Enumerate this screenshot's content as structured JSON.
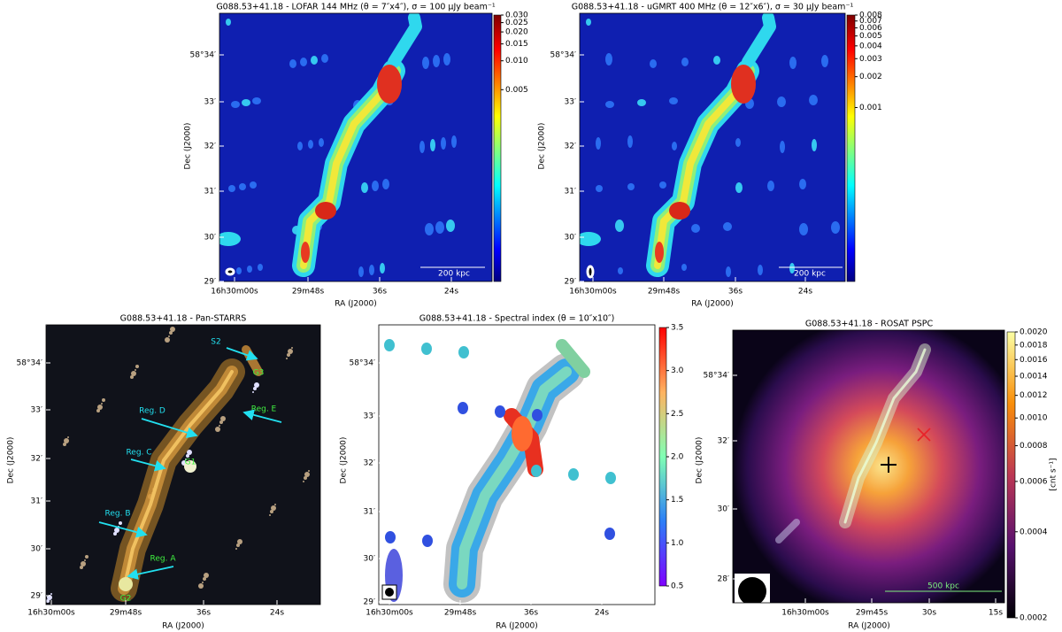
{
  "panels": [
    {
      "title": "G088.53+41.18 - LOFAR 144 MHz (θ = 7″x4″), σ = 100 μJy beam⁻¹",
      "x_label": "RA (J2000)",
      "y_label": "Dec (J2000)",
      "ra_ticks": [
        "16h30m00s",
        "29m48s",
        "36s",
        "24s"
      ],
      "dec_ticks": [
        "58°34′",
        "33′",
        "32′",
        "31′",
        "30′",
        "29′"
      ],
      "colorbar": {
        "scale": "log",
        "colormap": "jet",
        "lim": [
          5e-05,
          0.03
        ],
        "ticks": [
          {
            "value": 0.03,
            "label": "0.030"
          },
          {
            "value": 0.025,
            "label": "0.025"
          },
          {
            "value": 0.02,
            "label": "0.020"
          },
          {
            "value": 0.015,
            "label": "0.015"
          },
          {
            "value": 0.01,
            "label": "0.010"
          },
          {
            "value": 0.005,
            "label": "0.005"
          }
        ]
      },
      "annotations": [
        "200 kpc"
      ]
    },
    {
      "title": "G088.53+41.18 - uGMRT 400 MHz (θ = 12″x6″), σ =  30 μJy beam⁻¹",
      "x_label": "RA (J2000)",
      "y_label": "Dec (J2000)",
      "ra_ticks": [
        "16h30m00s",
        "29m48s",
        "36s",
        "24s"
      ],
      "dec_ticks": [
        "58°34′",
        "33′",
        "32′",
        "31′",
        "30′",
        "29′"
      ],
      "colorbar": {
        "scale": "log",
        "colormap": "jet",
        "lim": [
          2e-05,
          0.008
        ],
        "ticks": [
          0.008,
          0.007,
          0.006,
          0.005,
          0.004,
          0.003,
          0.002,
          0.001
        ]
      },
      "annotations": [
        "200 kpc"
      ]
    },
    {
      "title": "G088.53+41.18 - Pan-STARRS",
      "x_label": "RA (J2000)",
      "y_label": "Dec (J2000)",
      "ra_ticks": [
        "16h30m00s",
        "29m48s",
        "36s",
        "24s"
      ],
      "dec_ticks": [
        "58°34′",
        "33′",
        "32′",
        "31′",
        "30′",
        "29′"
      ],
      "annotations": [
        "S2",
        "G3",
        "Reg. D",
        "Reg. E",
        "Reg. C",
        "G1",
        "Reg. B",
        "Reg. A",
        "G2"
      ]
    },
    {
      "title": "G088.53+41.18 - Spectral index (θ = 10″x10″)",
      "x_label": "RA (J2000)",
      "y_label": "Dec (J2000)",
      "ra_ticks": [
        "16h30m00s",
        "29m48s",
        "36s",
        "24s"
      ],
      "dec_ticks": [
        "58°34′",
        "33′",
        "32′",
        "31′",
        "30′",
        "29′"
      ],
      "colorbar": {
        "scale": "linear",
        "colormap": "rainbow",
        "lim": [
          0.5,
          3.5
        ],
        "ticks": [
          {
            "value": 3.5,
            "label": "3.5"
          },
          {
            "value": 3,
            "label": "3.0"
          },
          {
            "value": 2.5,
            "label": "2.5"
          },
          {
            "value": 2,
            "label": "2.0"
          },
          {
            "value": 1.5,
            "label": "1.5"
          },
          {
            "value": 1,
            "label": "1.0"
          },
          {
            "value": 0.5,
            "label": "0.5"
          }
        ]
      },
      "annotations": []
    },
    {
      "title": "G088.53+41.18  - ROSAT PSPC",
      "x_label": "RA (J2000)",
      "y_label": "Dec (J2000)",
      "ra_ticks": [
        "16h30m00s",
        "29m45s",
        "30s",
        "15s"
      ],
      "dec_ticks": [
        "58°34′",
        "32′",
        "30′",
        "28′"
      ],
      "colorbar": {
        "scale": "log",
        "colormap": "inferno",
        "lim": [
          0.0002,
          0.002
        ],
        "label": "[cnt s⁻¹]",
        "ticks": [
          {
            "value": 0.002,
            "label": "0.0020"
          },
          0.0018,
          0.0016,
          0.0014,
          0.0012,
          {
            "value": 0.001,
            "label": "0.0010"
          },
          0.0008,
          0.0006,
          0.0004,
          0.0002
        ]
      },
      "annotations": [
        "500 kpc"
      ]
    }
  ]
}
